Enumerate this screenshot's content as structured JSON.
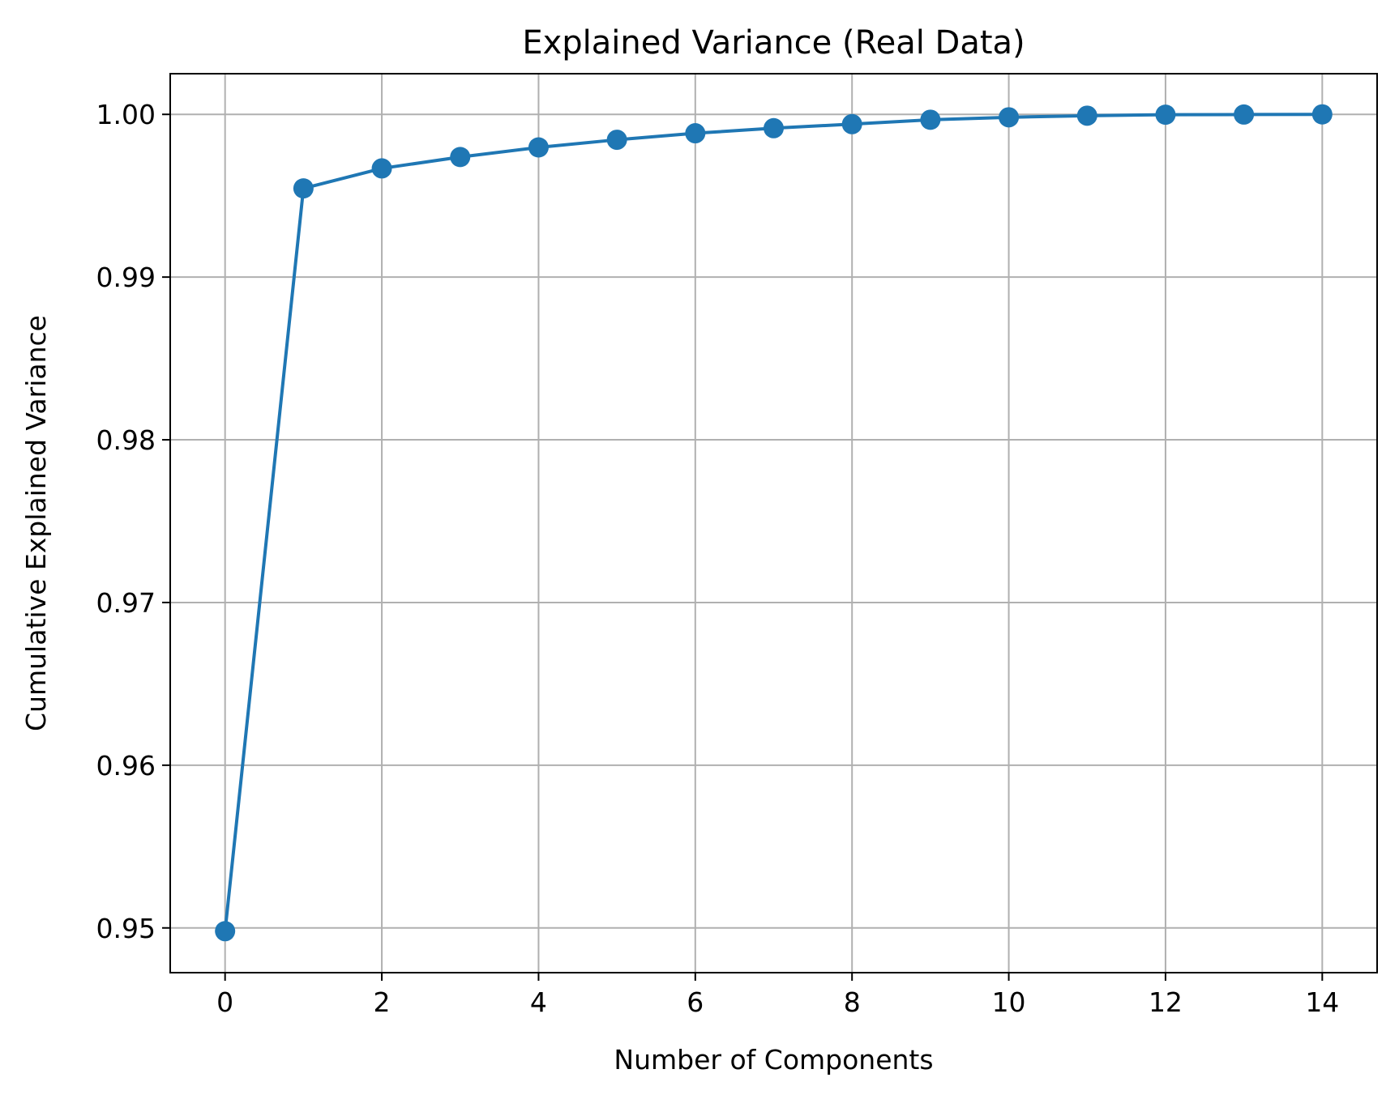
{
  "chart_data": {
    "type": "line",
    "title": "Explained Variance (Real Data)",
    "xlabel": "Number of Components",
    "ylabel": "Cumulative Explained Variance",
    "x": [
      0,
      1,
      2,
      3,
      4,
      5,
      6,
      7,
      8,
      9,
      10,
      11,
      12,
      13,
      14
    ],
    "series": [
      {
        "values": [
          0.9498,
          0.99545,
          0.99668,
          0.99738,
          0.99797,
          0.99844,
          0.99884,
          0.99915,
          0.9994,
          0.99967,
          0.99982,
          0.99992,
          0.99998,
          0.99999,
          1.0
        ],
        "color": "#1f77b4",
        "marker": "circle"
      }
    ],
    "xlim": [
      -0.7,
      14.7
    ],
    "ylim": [
      0.94725,
      1.0025
    ],
    "xticks": [
      0,
      2,
      4,
      6,
      8,
      10,
      12,
      14
    ],
    "xtick_labels": [
      "0",
      "2",
      "4",
      "6",
      "8",
      "10",
      "12",
      "14"
    ],
    "yticks": [
      0.95,
      0.96,
      0.97,
      0.98,
      0.99,
      1.0
    ],
    "ytick_labels": [
      "0.95",
      "0.96",
      "0.97",
      "0.98",
      "0.99",
      "1.00"
    ],
    "grid": true,
    "grid_color": "#b0b0b0"
  }
}
